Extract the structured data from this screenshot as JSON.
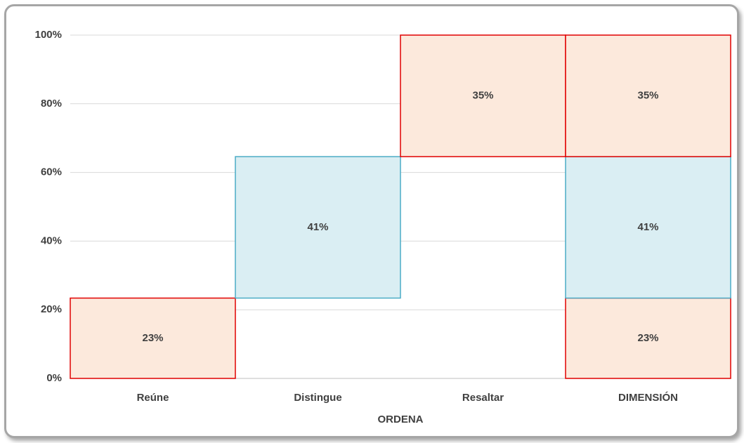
{
  "chart_data": {
    "type": "waterfall",
    "categories": [
      "Reúne",
      "Distingue",
      "Resaltar"
    ],
    "total_category": "DIMENSIÓN",
    "values": [
      23.4,
      41.2,
      35.4
    ],
    "value_labels": [
      "23%",
      "41%",
      "35%"
    ],
    "fills": [
      "#fce9dc",
      "#daeef3",
      "#fce9dc"
    ],
    "colors": [
      "#e00000",
      "#4bacc6",
      "#e00000"
    ],
    "x_label": "ORDENA",
    "ylim": [
      0,
      100
    ],
    "yticks": [
      {
        "value": 0,
        "label": "0%"
      },
      {
        "value": 20,
        "label": "20%"
      },
      {
        "value": 40,
        "label": "40%"
      },
      {
        "value": 60,
        "label": "60%"
      },
      {
        "value": 80,
        "label": "80%"
      },
      {
        "value": 100,
        "label": "100%"
      }
    ],
    "grid": true
  }
}
